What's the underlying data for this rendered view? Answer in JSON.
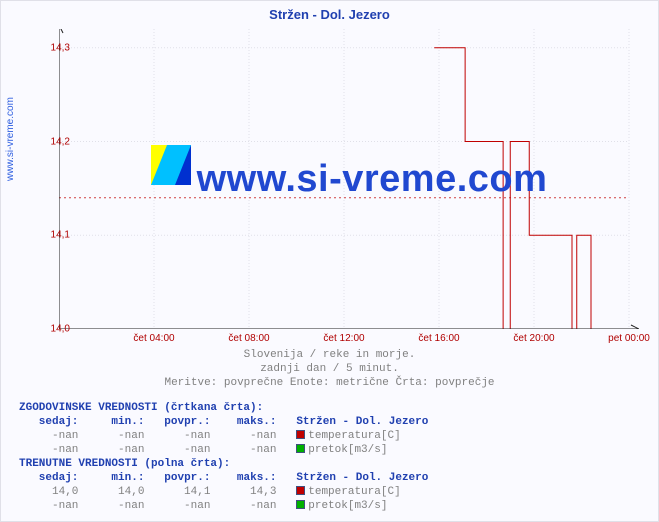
{
  "title": "Stržen - Dol. Jezero",
  "yaxis_label": "www.si-vreme.com",
  "watermark_text": "www.si-vreme.com",
  "watermark_color": "#2048d0",
  "watermark_fontsize": 38,
  "chart": {
    "type": "line",
    "background_color": "#fafaff",
    "grid_color": "#e0e0e8",
    "axis_color": "#202020",
    "tick_color": "#b00000",
    "ylim": [
      14.0,
      14.32
    ],
    "yticks": [
      14.0,
      14.1,
      14.2,
      14.3
    ],
    "ytick_labels": [
      "14,0",
      "14,1",
      "14,2",
      "14,3"
    ],
    "xlim": [
      0,
      24
    ],
    "xticks": [
      4,
      8,
      12,
      16,
      20,
      24
    ],
    "xtick_labels": [
      "čet 04:00",
      "čet 08:00",
      "čet 12:00",
      "čet 16:00",
      "čet 20:00",
      "pet 00:00"
    ],
    "avg_line": {
      "value": 14.14,
      "color": "#d04040",
      "dash": "2,3",
      "width": 1
    },
    "series": {
      "name": "temperatura",
      "color": "#c00000",
      "width": 1,
      "points": [
        [
          15.8,
          14.3
        ],
        [
          17.1,
          14.3
        ],
        [
          17.1,
          14.2
        ],
        [
          18.7,
          14.2
        ],
        [
          18.7,
          14.0
        ],
        [
          19.0,
          14.0
        ],
        [
          19.0,
          14.2
        ],
        [
          19.8,
          14.2
        ],
        [
          19.8,
          14.1
        ],
        [
          21.6,
          14.1
        ],
        [
          21.6,
          14.0
        ],
        [
          21.8,
          14.0
        ],
        [
          21.8,
          14.1
        ],
        [
          22.4,
          14.1
        ],
        [
          22.4,
          14.0
        ]
      ]
    }
  },
  "captions": [
    "Slovenija / reke in morje.",
    "zadnji dan / 5 minut.",
    "Meritve: povprečne  Enote: metrične  Črta: povprečje"
  ],
  "tables": [
    {
      "header": "ZGODOVINSKE VREDNOSTI (črtkana črta):",
      "cols": [
        "sedaj:",
        "min.:",
        "povpr.:",
        "maks.:"
      ],
      "series_name": "Stržen - Dol. Jezero",
      "rows": [
        {
          "vals": [
            "-nan",
            "-nan",
            "-nan",
            "-nan"
          ],
          "swatch": "#c00000",
          "label": "temperatura[C]"
        },
        {
          "vals": [
            "-nan",
            "-nan",
            "-nan",
            "-nan"
          ],
          "swatch": "#00b000",
          "label": "pretok[m3/s]"
        }
      ]
    },
    {
      "header": "TRENUTNE VREDNOSTI (polna črta):",
      "cols": [
        "sedaj:",
        "min.:",
        "povpr.:",
        "maks.:"
      ],
      "series_name": "Stržen - Dol. Jezero",
      "rows": [
        {
          "vals": [
            "14,0",
            "14,0",
            "14,1",
            "14,3"
          ],
          "swatch": "#c00000",
          "label": "temperatura[C]"
        },
        {
          "vals": [
            "-nan",
            "-nan",
            "-nan",
            "-nan"
          ],
          "swatch": "#00b000",
          "label": "pretok[m3/s]"
        }
      ]
    }
  ],
  "logo_colors": {
    "tl": "#ffff00",
    "br": "#0030d0",
    "diag": "#00c0ff"
  }
}
